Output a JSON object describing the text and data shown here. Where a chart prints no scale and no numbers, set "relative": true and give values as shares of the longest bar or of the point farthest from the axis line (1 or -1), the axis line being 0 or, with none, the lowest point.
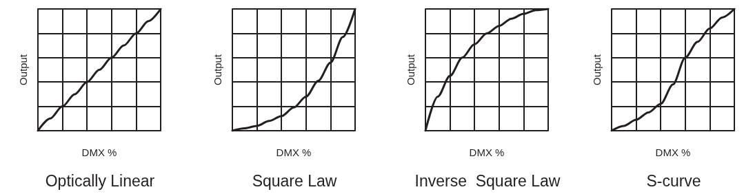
{
  "chart_data": [
    {
      "type": "line",
      "title": "Optically Linear",
      "xlabel": "DMX %",
      "ylabel": "Output",
      "relative": true,
      "grid": true,
      "marker": "none",
      "line_style": "solid",
      "categories": [
        null,
        null,
        null,
        null,
        null,
        null,
        null,
        null,
        null,
        null,
        null
      ],
      "series": [
        {
          "color": "#231f20",
          "values": [
            0,
            0.1,
            0.2,
            0.3,
            0.4,
            0.5,
            0.6,
            0.7,
            0.8,
            0.9,
            1
          ]
        }
      ]
    },
    {
      "type": "line",
      "title": "Square Law",
      "xlabel": "DMX %",
      "ylabel": "Output",
      "relative": true,
      "grid": true,
      "marker": "none",
      "line_style": "solid",
      "categories": [
        null,
        null,
        null,
        null,
        null,
        null,
        null,
        null,
        null,
        null,
        null
      ],
      "series": [
        {
          "color": "#231f20",
          "values": [
            0,
            0.02,
            0.04,
            0.08,
            0.12,
            0.19,
            0.28,
            0.41,
            0.56,
            0.77,
            1
          ]
        }
      ]
    },
    {
      "type": "line",
      "title": "Inverse  Square Law",
      "xlabel": "DMX %",
      "ylabel": "Output",
      "relative": true,
      "grid": true,
      "marker": "none",
      "line_style": "solid",
      "categories": [
        null,
        null,
        null,
        null,
        null,
        null,
        null,
        null,
        null,
        null,
        null
      ],
      "series": [
        {
          "color": "#231f20",
          "values": [
            0,
            0.28,
            0.45,
            0.6,
            0.71,
            0.8,
            0.86,
            0.92,
            0.96,
            0.99,
            1
          ]
        }
      ]
    },
    {
      "type": "line",
      "title": "S-curve",
      "xlabel": "DMX %",
      "ylabel": "Output",
      "relative": true,
      "grid": true,
      "marker": "none",
      "line_style": "solid",
      "categories": [
        null,
        null,
        null,
        null,
        null,
        null,
        null,
        null,
        null,
        null,
        null
      ],
      "series": [
        {
          "color": "#231f20",
          "values": [
            0,
            0.04,
            0.09,
            0.15,
            0.22,
            0.38,
            0.6,
            0.73,
            0.84,
            0.93,
            1
          ]
        }
      ]
    }
  ]
}
